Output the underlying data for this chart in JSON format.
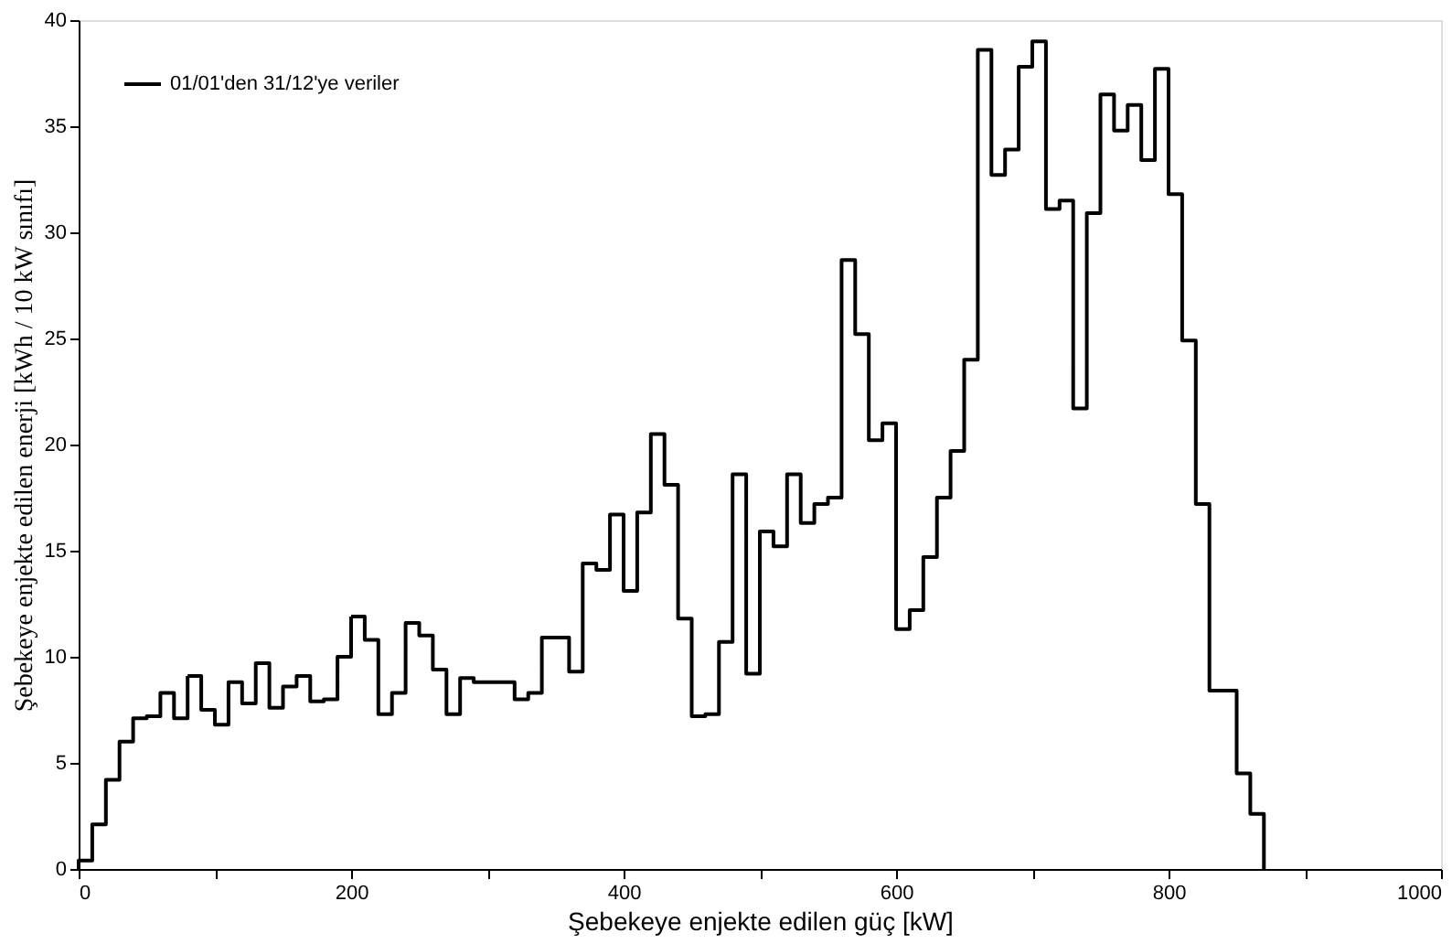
{
  "chart_data": {
    "type": "histogram",
    "xlabel": "Şebekeye enjekte edilen güç [kW]",
    "ylabel": "Şebekeye enjekte edilen enerji [kWh / 10 kW sınıfı]",
    "bins": [
      0,
      10,
      20,
      30,
      40,
      50,
      60,
      70,
      80,
      90,
      100,
      110,
      120,
      130,
      140,
      150,
      160,
      170,
      180,
      190,
      200,
      210,
      220,
      230,
      240,
      250,
      260,
      270,
      280,
      290,
      300,
      310,
      320,
      330,
      340,
      350,
      360,
      370,
      380,
      390,
      400,
      410,
      420,
      430,
      440,
      450,
      460,
      470,
      480,
      490,
      500,
      510,
      520,
      530,
      540,
      550,
      560,
      570,
      580,
      590,
      600,
      610,
      620,
      630,
      640,
      650,
      660,
      670,
      680,
      690,
      700,
      710,
      720,
      730,
      740,
      750,
      760,
      770,
      780,
      790,
      800,
      810,
      820,
      830,
      840,
      850,
      860,
      870
    ],
    "series": [
      {
        "name": "01/01'den 31/12'ye veriler",
        "color": "#000000",
        "values": [
          0.4,
          2.1,
          4.2,
          6.0,
          7.1,
          7.2,
          8.3,
          7.1,
          9.1,
          7.5,
          6.8,
          8.8,
          7.8,
          9.7,
          7.6,
          8.6,
          9.1,
          7.9,
          8.0,
          10.0,
          11.9,
          10.8,
          7.3,
          8.3,
          11.6,
          11.0,
          9.4,
          7.3,
          9.0,
          8.8,
          8.8,
          8.8,
          8.0,
          8.3,
          10.9,
          10.9,
          9.3,
          14.4,
          14.1,
          16.7,
          13.1,
          16.8,
          20.5,
          18.1,
          11.8,
          7.2,
          7.3,
          10.7,
          18.6,
          9.2,
          15.9,
          15.2,
          18.6,
          16.3,
          17.2,
          17.5,
          28.7,
          25.2,
          20.2,
          21.0,
          11.3,
          12.2,
          14.7,
          17.5,
          19.7,
          24.0,
          38.6,
          32.7,
          33.9,
          37.8,
          39.0,
          31.1,
          31.5,
          21.7,
          30.9,
          36.5,
          34.8,
          36.0,
          33.4,
          37.7,
          31.8,
          24.9,
          17.2,
          8.4,
          8.4,
          4.5,
          2.6
        ]
      }
    ],
    "xlim": [
      0,
      1000
    ],
    "ylim": [
      0,
      40
    ],
    "xticks": [
      0,
      {
        "value": 100,
        "label": null
      },
      200,
      {
        "value": 300,
        "label": null
      },
      400,
      {
        "value": 500,
        "label": null
      },
      600,
      {
        "value": 700,
        "label": null
      },
      800,
      {
        "value": 900,
        "label": null
      },
      1000
    ],
    "yticks": [
      0,
      5,
      10,
      15,
      20,
      25,
      30,
      35,
      40
    ],
    "grid": false,
    "legend": "top left",
    "line_style": "solid",
    "marker": "none"
  }
}
